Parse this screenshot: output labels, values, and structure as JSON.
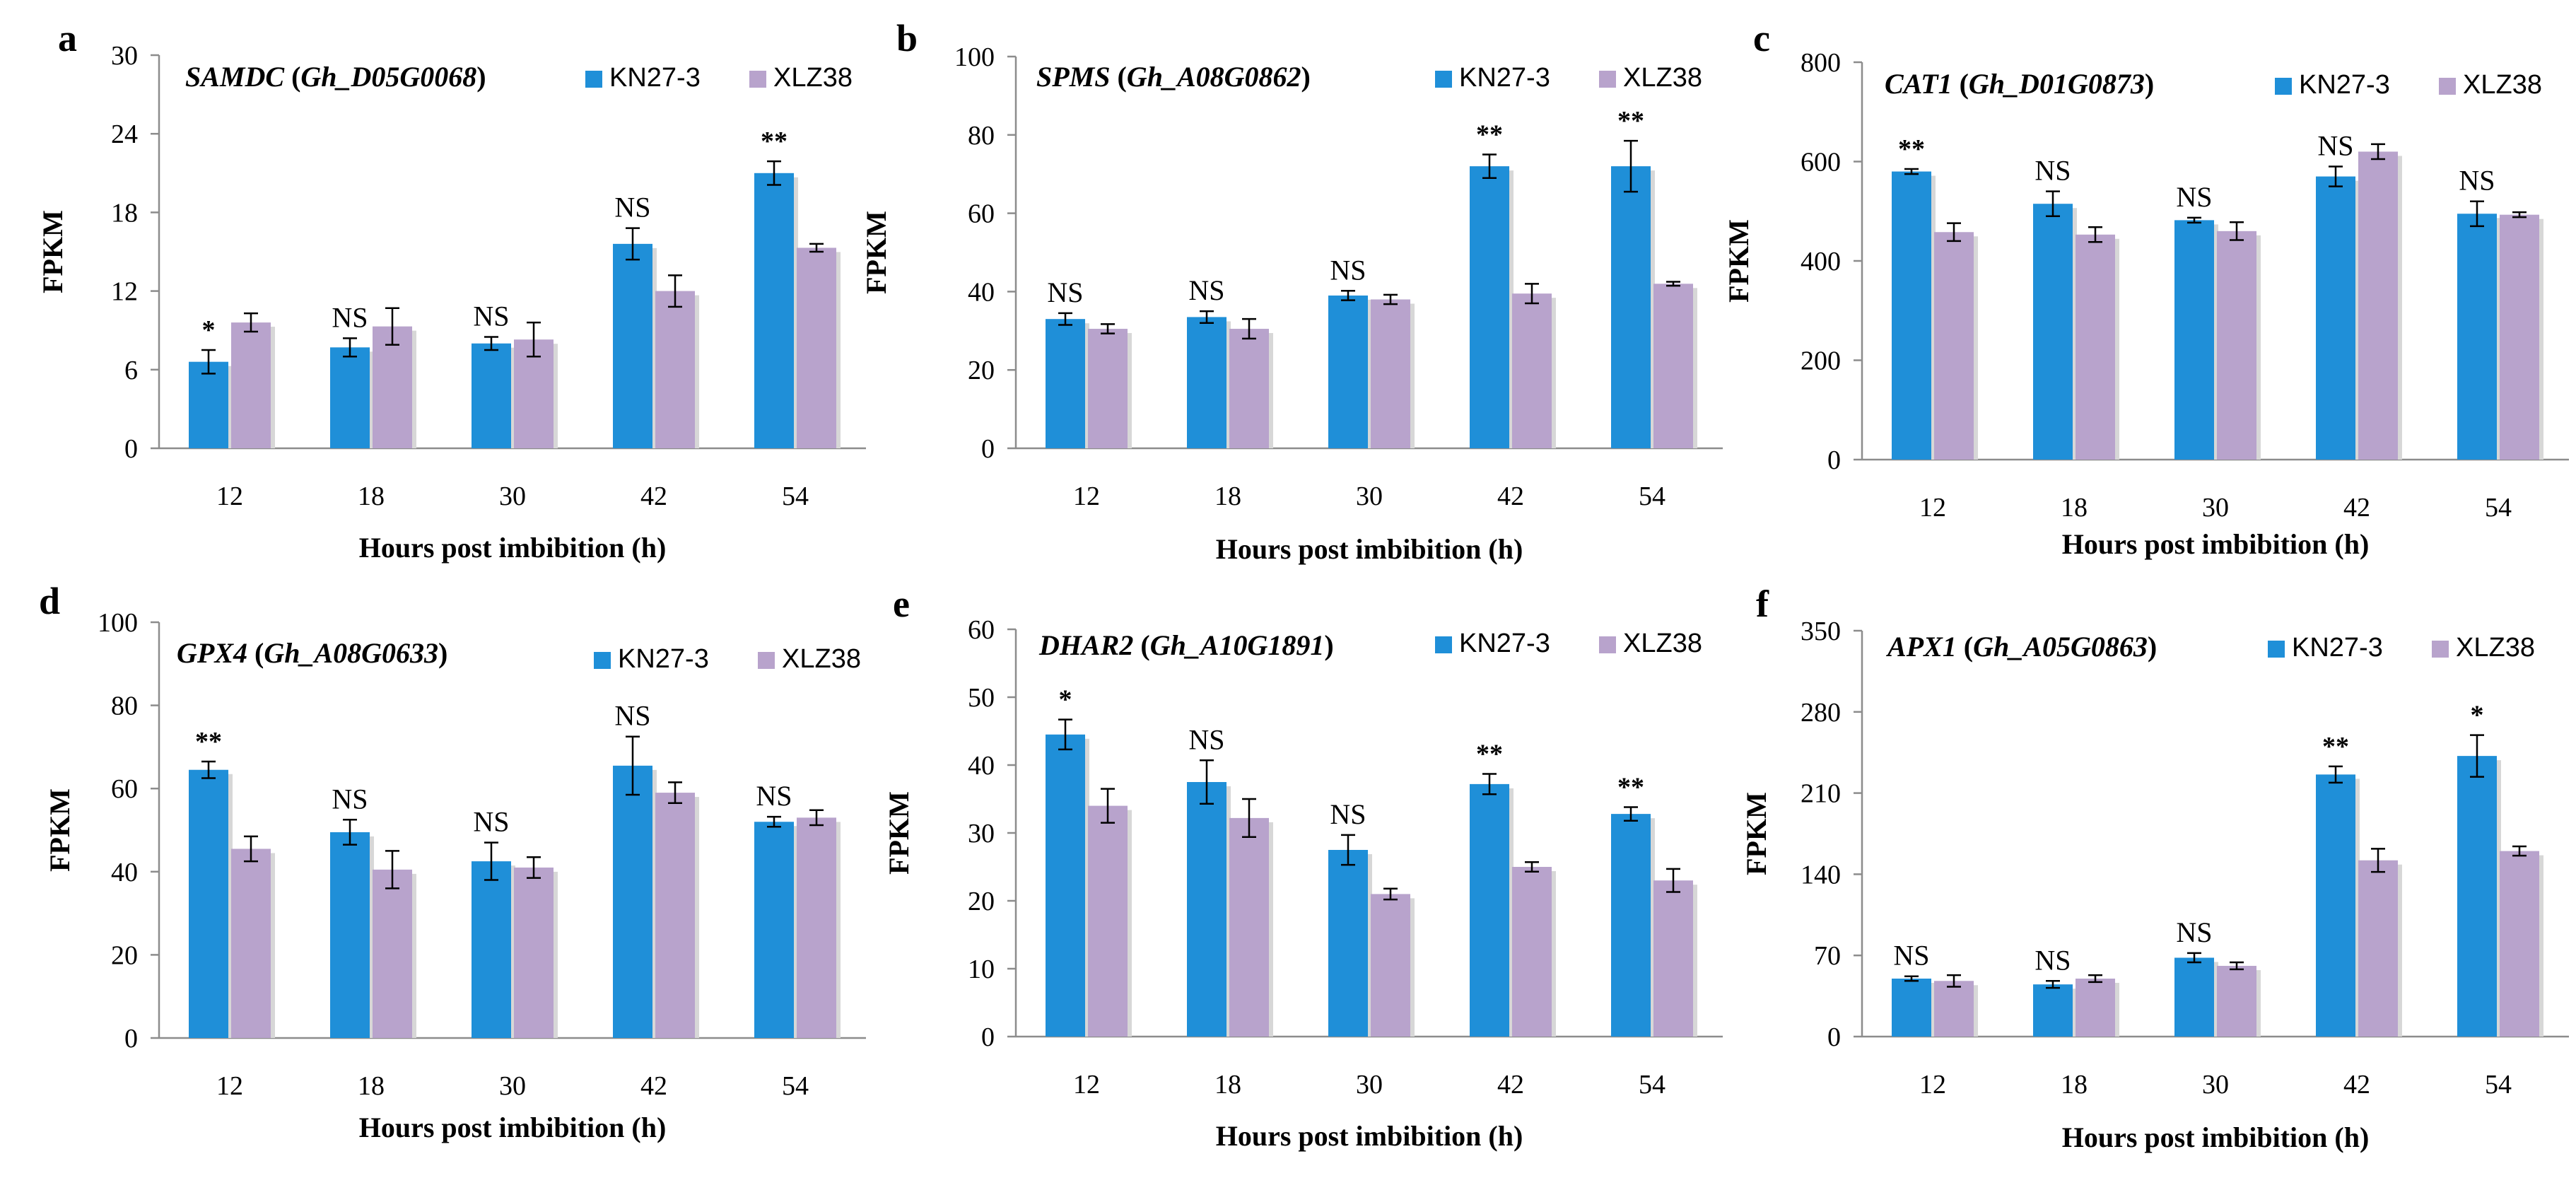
{
  "series_names": [
    "KN27-3",
    "XLZ38"
  ],
  "colors": {
    "kn": "#1f8fd8",
    "xlz": "#b8a3cc",
    "axis": "#8c8c8c",
    "text": "#000000",
    "shadow": "#d7d7d7"
  },
  "chart_data": [
    {
      "type": "bar",
      "panel": "a",
      "gene": "SAMDC",
      "gene_id": "Gh_D05G0068",
      "categories": [
        "12",
        "18",
        "30",
        "42",
        "54"
      ],
      "series": [
        {
          "name": "KN27-3",
          "values": [
            6.6,
            7.7,
            8.0,
            15.6,
            21.0
          ],
          "errors": [
            0.9,
            0.7,
            0.5,
            1.2,
            0.9
          ]
        },
        {
          "name": "XLZ38",
          "values": [
            9.6,
            9.3,
            8.3,
            12.0,
            15.3
          ],
          "errors": [
            0.7,
            1.4,
            1.3,
            1.2,
            0.3
          ]
        }
      ],
      "significance": [
        "*",
        "NS",
        "NS",
        "NS",
        "**"
      ],
      "yticks": [
        0,
        6,
        12,
        18,
        24,
        30
      ],
      "ylim": [
        0,
        30
      ],
      "ylabel": "FPKM",
      "xlabel": "Hours post imbibition (h)",
      "legend": "top-right"
    },
    {
      "type": "bar",
      "panel": "b",
      "gene": "SPMS",
      "gene_id": "Gh_A08G0862",
      "categories": [
        "12",
        "18",
        "30",
        "42",
        "54"
      ],
      "series": [
        {
          "name": "KN27-3",
          "values": [
            33,
            33.5,
            39,
            72,
            72
          ],
          "errors": [
            1.5,
            1.5,
            1.2,
            3.0,
            6.5
          ]
        },
        {
          "name": "XLZ38",
          "values": [
            30.5,
            30.5,
            38,
            39.5,
            42
          ],
          "errors": [
            1.2,
            2.5,
            1.2,
            2.5,
            0.5
          ]
        }
      ],
      "significance": [
        "NS",
        "NS",
        "NS",
        "**",
        "**"
      ],
      "yticks": [
        0,
        20,
        40,
        60,
        80,
        100
      ],
      "ylim": [
        0,
        100
      ],
      "ylabel": "FPKM",
      "xlabel": "Hours post imbibition (h)",
      "legend": "top-right"
    },
    {
      "type": "bar",
      "panel": "c",
      "gene": "CAT1",
      "gene_id": "Gh_D01G0873",
      "categories": [
        "12",
        "18",
        "30",
        "42",
        "54"
      ],
      "series": [
        {
          "name": "KN27-3",
          "values": [
            580,
            515,
            482,
            570,
            495
          ],
          "errors": [
            5,
            25,
            5,
            20,
            25
          ]
        },
        {
          "name": "XLZ38",
          "values": [
            458,
            453,
            460,
            620,
            493
          ],
          "errors": [
            18,
            15,
            18,
            15,
            5
          ]
        }
      ],
      "significance": [
        "**",
        "NS",
        "NS",
        "NS",
        "NS"
      ],
      "yticks": [
        0,
        200,
        400,
        600,
        800
      ],
      "ylim": [
        0,
        800
      ],
      "ylabel": "FPKM",
      "xlabel": "Hours post imbibition (h)",
      "legend": "top-right"
    },
    {
      "type": "bar",
      "panel": "d",
      "gene": "GPX4",
      "gene_id": "Gh_A08G0633",
      "categories": [
        "12",
        "18",
        "30",
        "42",
        "54"
      ],
      "series": [
        {
          "name": "KN27-3",
          "values": [
            64.5,
            49.5,
            42.5,
            65.5,
            52
          ],
          "errors": [
            2.0,
            3.0,
            4.5,
            7.0,
            1.2
          ]
        },
        {
          "name": "XLZ38",
          "values": [
            45.5,
            40.5,
            41,
            59,
            53
          ],
          "errors": [
            3.0,
            4.5,
            2.5,
            2.5,
            1.8
          ]
        }
      ],
      "significance": [
        "**",
        "NS",
        "NS",
        "NS",
        "NS"
      ],
      "yticks": [
        0,
        20,
        40,
        60,
        80,
        100
      ],
      "ylim": [
        0,
        100
      ],
      "ylabel": "FPKM",
      "xlabel": "Hours post imbibition (h)",
      "legend": "top-right"
    },
    {
      "type": "bar",
      "panel": "e",
      "gene": "DHAR2",
      "gene_id": "Gh_A10G1891",
      "categories": [
        "12",
        "18",
        "30",
        "42",
        "54"
      ],
      "series": [
        {
          "name": "KN27-3",
          "values": [
            44.5,
            37.5,
            27.5,
            37.2,
            32.8
          ],
          "errors": [
            2.2,
            3.2,
            2.2,
            1.5,
            1.0
          ]
        },
        {
          "name": "XLZ38",
          "values": [
            34,
            32.2,
            21,
            25,
            23
          ],
          "errors": [
            2.5,
            2.8,
            0.8,
            0.7,
            1.7
          ]
        }
      ],
      "significance": [
        "*",
        "NS",
        "NS",
        "**",
        "**"
      ],
      "yticks": [
        0,
        10,
        20,
        30,
        40,
        50,
        60
      ],
      "ylim": [
        0,
        60
      ],
      "ylabel": "FPKM",
      "xlabel": "Hours post imbibition (h)",
      "legend": "top-right"
    },
    {
      "type": "bar",
      "panel": "f",
      "gene": "APX1",
      "gene_id": "Gh_A05G0863",
      "categories": [
        "12",
        "18",
        "30",
        "42",
        "54"
      ],
      "series": [
        {
          "name": "KN27-3",
          "values": [
            50,
            45,
            68,
            226,
            242
          ],
          "errors": [
            2,
            3,
            4,
            7,
            18
          ]
        },
        {
          "name": "XLZ38",
          "values": [
            48,
            50,
            61,
            152,
            160
          ],
          "errors": [
            5,
            3,
            3,
            10,
            4
          ]
        }
      ],
      "significance": [
        "NS",
        "NS",
        "NS",
        "**",
        "*"
      ],
      "yticks": [
        0,
        70,
        140,
        210,
        280,
        350
      ],
      "ylim": [
        0,
        350
      ],
      "ylabel": "FPKM",
      "xlabel": "Hours post imbibition (h)",
      "legend": "top-right"
    }
  ]
}
